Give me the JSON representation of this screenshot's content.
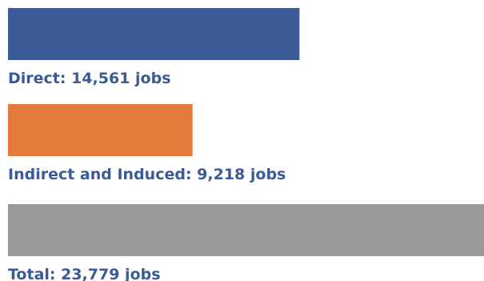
{
  "chart_data": {
    "type": "bar",
    "orientation": "horizontal",
    "categories": [
      "Direct",
      "Indirect and Induced",
      "Total"
    ],
    "values": [
      14561,
      9218,
      23779
    ],
    "labels": [
      "Direct: 14,561 jobs",
      "Indirect and Induced: 9,218 jobs",
      "Total: 23,779 jobs"
    ],
    "colors": [
      "#3A5A98",
      "#E47A3C",
      "#999999"
    ],
    "label_color": "#3A5A98",
    "title": "",
    "xlabel": "",
    "ylabel": "",
    "grid": false,
    "legend": "none"
  }
}
